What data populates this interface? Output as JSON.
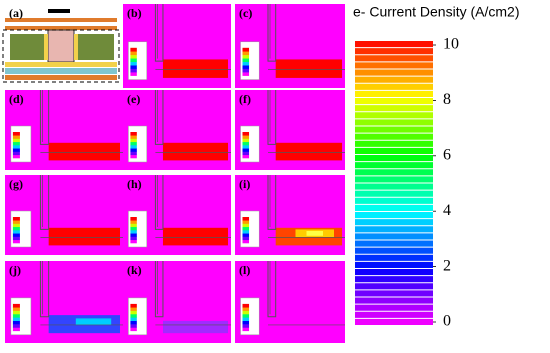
{
  "panels": [
    {
      "label": "(a)"
    },
    {
      "label": "(b)"
    },
    {
      "label": "(c)"
    },
    {
      "label": "(d)"
    },
    {
      "label": "(e)"
    },
    {
      "label": "(f)"
    },
    {
      "label": "(g)"
    },
    {
      "label": "(h)"
    },
    {
      "label": "(i)"
    },
    {
      "label": "(j)"
    },
    {
      "label": "(k)"
    },
    {
      "label": "(l)"
    }
  ],
  "colorbar": {
    "title": "e- Current Density (A/cm2)",
    "lim": [
      0,
      10
    ],
    "ticks": [
      0,
      2,
      4,
      6,
      8,
      10
    ]
  }
}
